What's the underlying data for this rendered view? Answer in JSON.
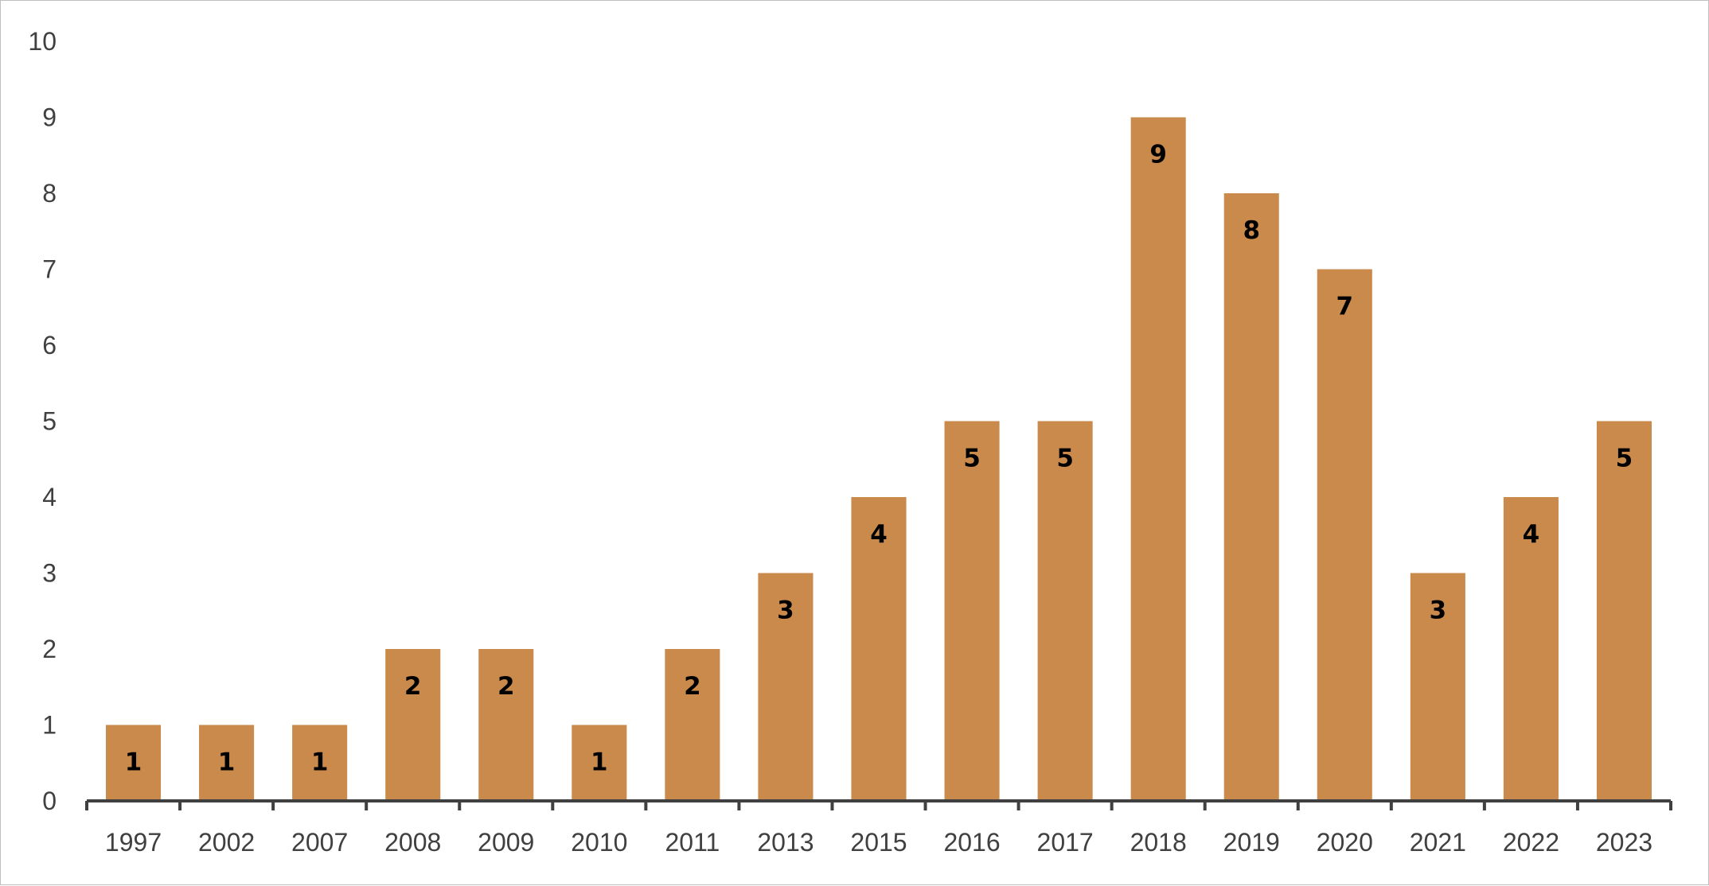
{
  "chart_data": {
    "type": "bar",
    "categories": [
      "1997",
      "2002",
      "2007",
      "2008",
      "2009",
      "2010",
      "2011",
      "2013",
      "2015",
      "2016",
      "2017",
      "2018",
      "2019",
      "2020",
      "2021",
      "2022",
      "2023"
    ],
    "values": [
      1,
      1,
      1,
      2,
      2,
      1,
      2,
      3,
      4,
      5,
      5,
      9,
      8,
      7,
      3,
      4,
      5
    ],
    "y_ticks": [
      "0",
      "1",
      "2",
      "3",
      "4",
      "5",
      "6",
      "7",
      "8",
      "9",
      "10"
    ],
    "ylim": [
      0,
      10
    ],
    "grid": false,
    "legend": "none",
    "bar_color": "#c98a4b",
    "axis_color": "#404040",
    "data_labels": true
  }
}
